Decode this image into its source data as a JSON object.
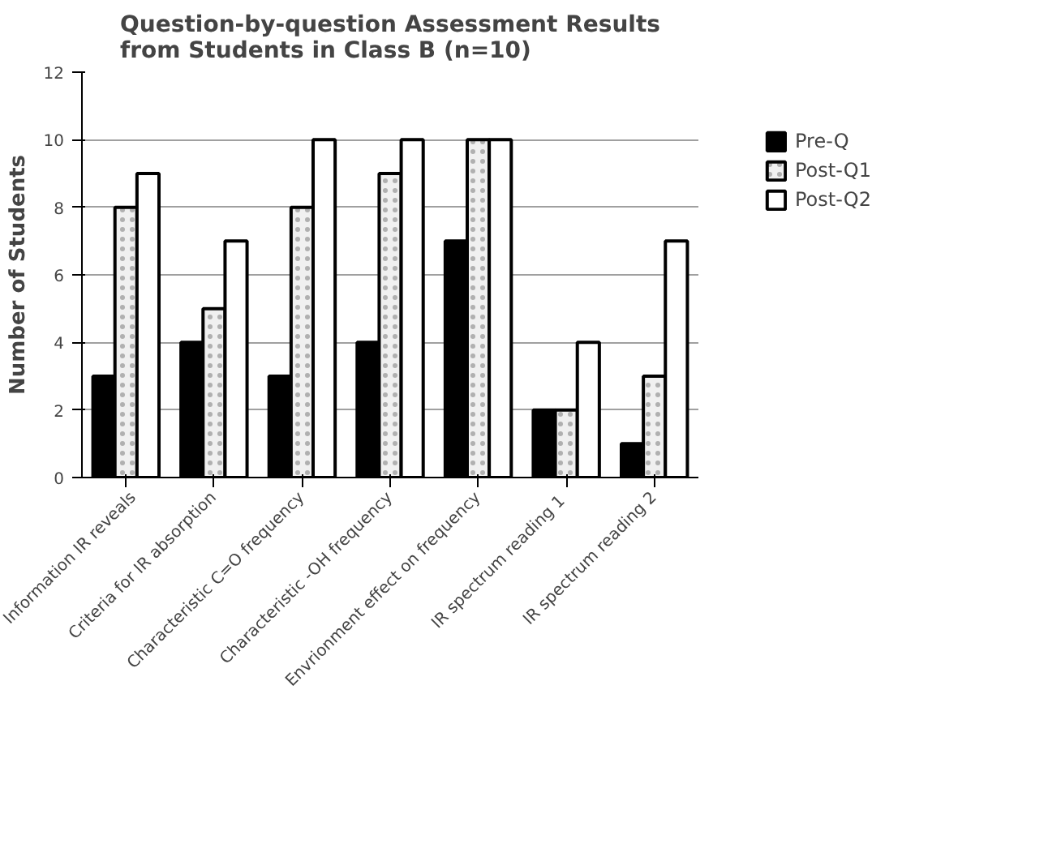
{
  "chart_data": {
    "type": "bar",
    "title": "Question-by-question Assessment Results\nfrom Students in Class B (n=10)",
    "ylabel": "Number of Students",
    "categories": [
      "Information IR reveals",
      "Criteria for IR absorption",
      "Characteristic C=O frequency",
      "Characteristic -OH frequency",
      "Envrionment effect on frequency",
      "IR spectrum reading  1",
      "IR spectrum reading 2"
    ],
    "series": [
      {
        "name": "Pre-Q",
        "color": "#000000",
        "values": [
          3,
          4,
          3,
          4,
          7,
          2,
          1
        ]
      },
      {
        "name": "Post-Q1",
        "color": "#f0f0f0",
        "values": [
          8,
          5,
          8,
          9,
          10,
          2,
          3
        ]
      },
      {
        "name": "Post-Q2",
        "color": "#ffffff",
        "values": [
          9,
          7,
          10,
          10,
          10,
          4,
          7
        ]
      }
    ],
    "ylim": [
      0,
      12
    ],
    "yticks": [
      0,
      2,
      4,
      6,
      8,
      10,
      12
    ],
    "grid": "y",
    "legend": "right"
  }
}
